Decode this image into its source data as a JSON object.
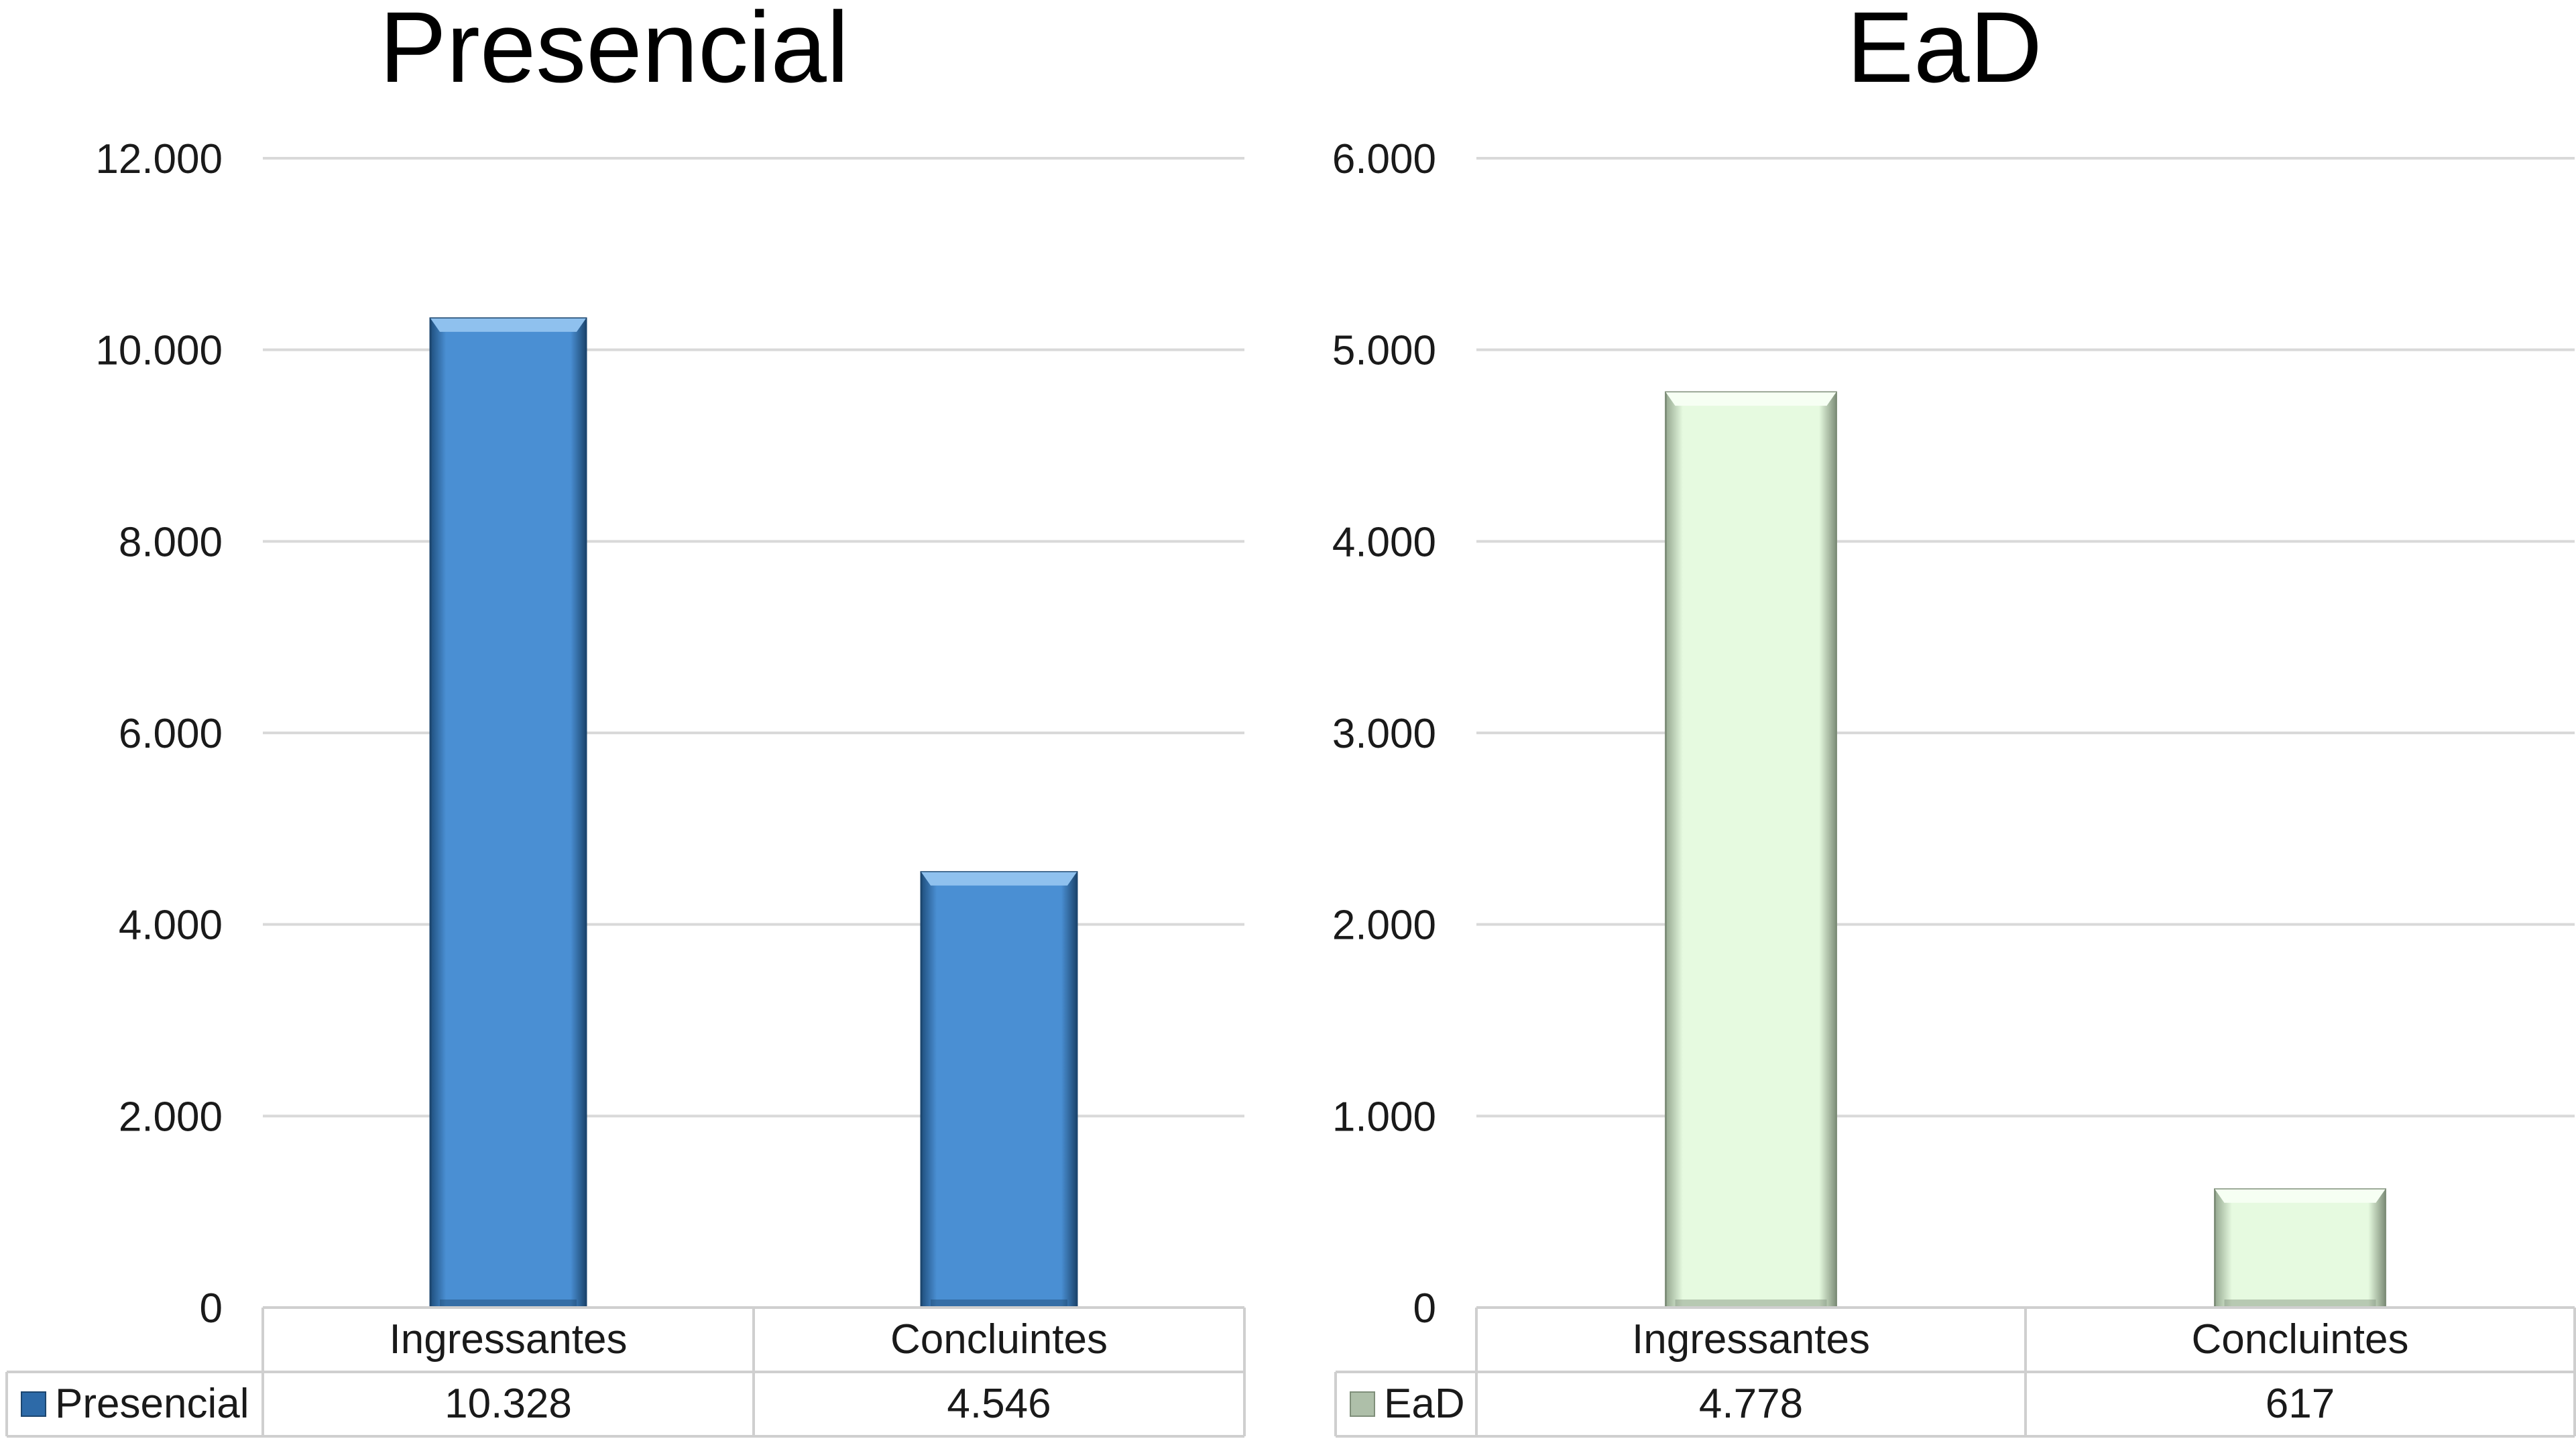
{
  "chart_data": [
    {
      "type": "bar",
      "title": "Presencial",
      "categories": [
        "Ingressantes",
        "Concluintes"
      ],
      "series": [
        {
          "name": "Presencial",
          "values": [
            10328,
            4546
          ]
        }
      ],
      "value_labels": [
        "10.328",
        "4.546"
      ],
      "ylim": [
        0,
        12000
      ],
      "yticks": [
        0,
        2000,
        4000,
        6000,
        8000,
        10000,
        12000
      ],
      "ytick_labels": [
        "0",
        "2.000",
        "4.000",
        "6.000",
        "8.000",
        "10.000",
        "12.000"
      ],
      "grid": true,
      "data_table": true,
      "color": "#4a8fd3"
    },
    {
      "type": "bar",
      "title": "EaD",
      "categories": [
        "Ingressantes",
        "Concluintes"
      ],
      "series": [
        {
          "name": "EaD",
          "values": [
            4778,
            617
          ]
        }
      ],
      "value_labels": [
        "4.778",
        "617"
      ],
      "ylim": [
        0,
        6000
      ],
      "yticks": [
        0,
        1000,
        2000,
        3000,
        4000,
        5000,
        6000
      ],
      "ytick_labels": [
        "0",
        "1.000",
        "2.000",
        "3.000",
        "4.000",
        "5.000",
        "6.000"
      ],
      "grid": true,
      "data_table": true,
      "color": "#e6fae0"
    }
  ]
}
